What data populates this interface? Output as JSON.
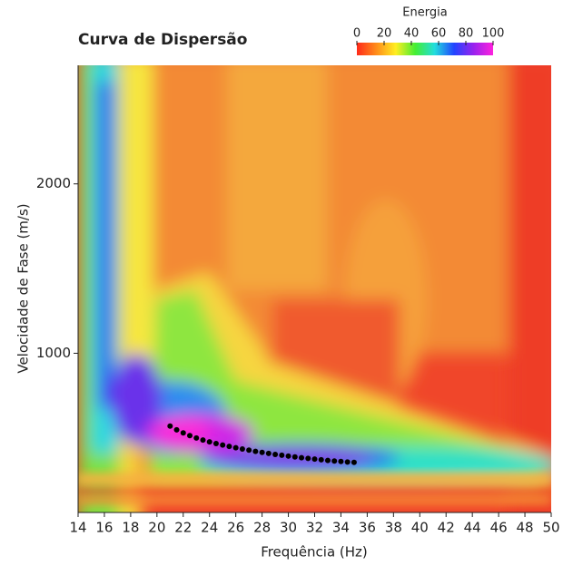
{
  "chart_data": {
    "type": "scatter",
    "title": "Curva de Dispersão",
    "xlabel": "Frequência (Hz)",
    "ylabel": "Velocidade de Fase (m/s)",
    "xlim": [
      14,
      50
    ],
    "xticks": [
      14,
      16,
      18,
      20,
      22,
      24,
      26,
      28,
      30,
      32,
      34,
      36,
      38,
      40,
      42,
      44,
      46,
      48,
      50
    ],
    "ylim": [
      60,
      2700
    ],
    "yticks": [
      1000,
      2000
    ],
    "colorbar": {
      "label": "Energia",
      "lim": [
        0,
        100
      ],
      "ticks": [
        0,
        20,
        40,
        60,
        80,
        100
      ],
      "colors": [
        "#ff2a1a",
        "#ff8c1a",
        "#ffee22",
        "#44ee33",
        "#22dddd",
        "#2244ff",
        "#9922ee",
        "#ff22dd"
      ]
    },
    "series": [
      {
        "color": "#000000",
        "x": [
          21,
          21.5,
          22,
          22.5,
          23,
          23.5,
          24,
          24.5,
          25,
          25.5,
          26,
          26.5,
          27,
          27.5,
          28,
          28.5,
          29,
          29.5,
          30,
          30.5,
          31,
          31.5,
          32,
          32.5,
          33,
          33.5,
          34,
          34.5,
          35
        ],
        "values": [
          570,
          548,
          530,
          514,
          500,
          488,
          477,
          467,
          458,
          450,
          442,
          435,
          428,
          421,
          415,
          409,
          403,
          398,
          393,
          388,
          383,
          379,
          375,
          371,
          367,
          364,
          361,
          358,
          356
        ]
      }
    ]
  }
}
